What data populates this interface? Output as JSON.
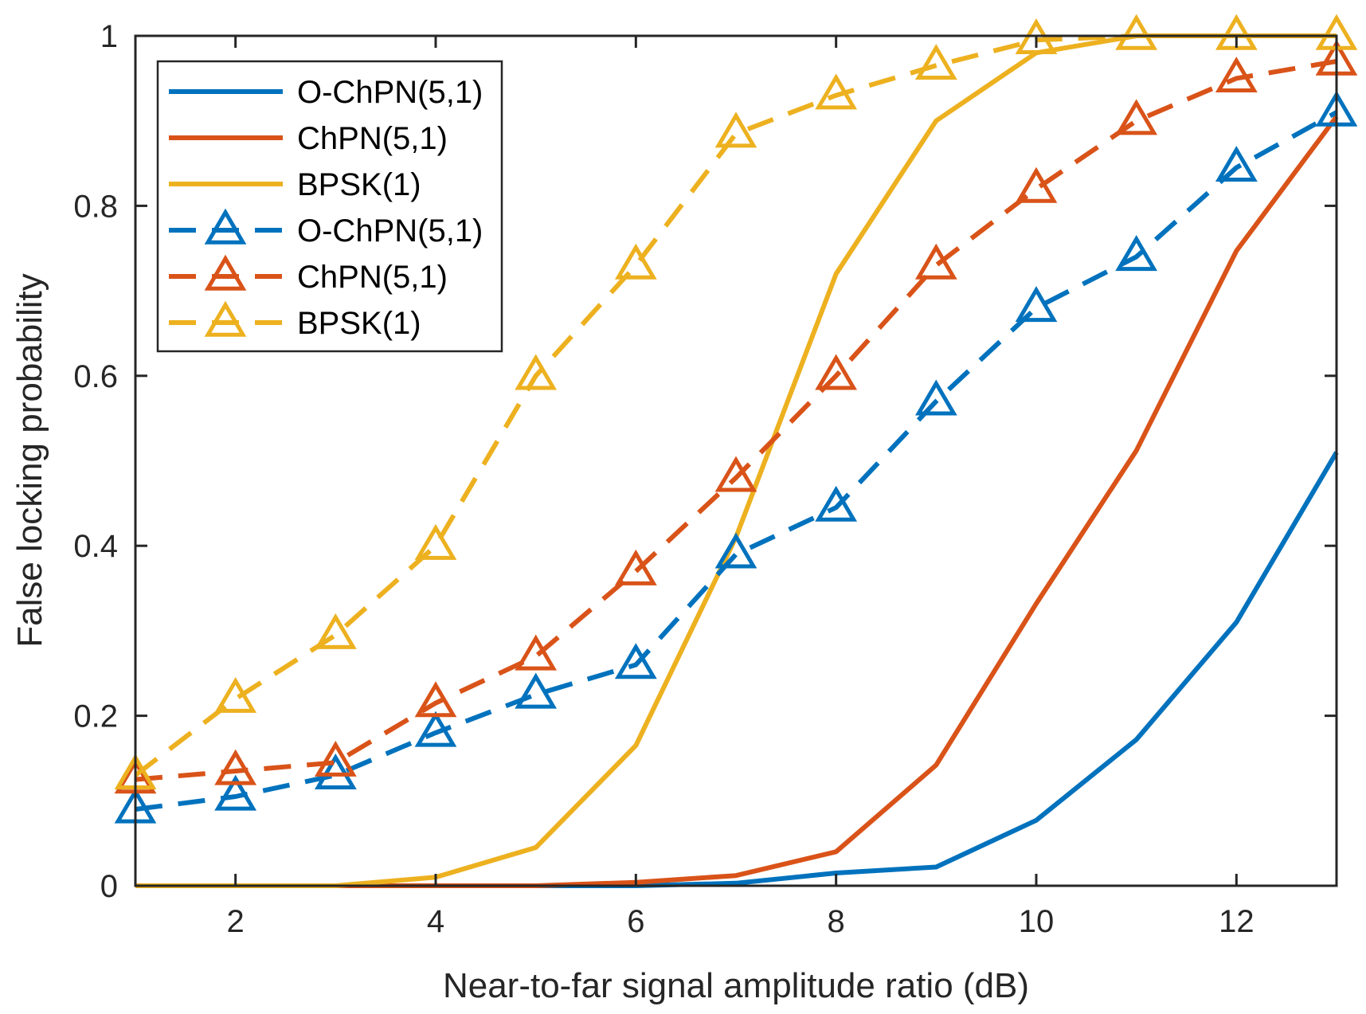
{
  "chart_data": {
    "type": "line",
    "title": "",
    "xlabel": "Near-to-far signal amplitude ratio (dB)",
    "ylabel": "False locking probability",
    "xlim": [
      1,
      13
    ],
    "ylim": [
      0,
      1
    ],
    "xticks": [
      2,
      4,
      6,
      8,
      10,
      12
    ],
    "xtick_labels": [
      "2",
      "4",
      "6",
      "8",
      "10",
      "12"
    ],
    "yticks": [
      0,
      0.2,
      0.4,
      0.6,
      0.8,
      1
    ],
    "ytick_labels": [
      "0",
      "0.2",
      "0.4",
      "0.6",
      "0.8",
      "1"
    ],
    "grid": false,
    "legend_position": "top-left",
    "x": [
      1,
      2,
      3,
      4,
      5,
      6,
      7,
      8,
      9,
      10,
      11,
      12,
      13
    ],
    "series": [
      {
        "name": "O-ChPN(5,1)",
        "color": "#0072BD",
        "style": "solid",
        "marker": "none",
        "values": [
          0,
          0,
          0,
          0,
          0,
          0,
          0.003,
          0.015,
          0.022,
          0.077,
          0.172,
          0.31,
          0.51
        ]
      },
      {
        "name": "ChPN(5,1)",
        "color": "#D95319",
        "style": "solid",
        "marker": "none",
        "values": [
          0,
          0,
          0,
          0,
          0,
          0.004,
          0.012,
          0.04,
          0.142,
          0.332,
          0.512,
          0.747,
          0.905
        ]
      },
      {
        "name": "BPSK(1)",
        "color": "#EDB120",
        "style": "solid",
        "marker": "none",
        "values": [
          0,
          0,
          0,
          0.01,
          0.045,
          0.165,
          0.41,
          0.72,
          0.9,
          0.98,
          1.0,
          1.0,
          1.0
        ]
      },
      {
        "name": "O-ChPN(5,1)",
        "color": "#0072BD",
        "style": "dashed",
        "marker": "triangle",
        "values": [
          0.09,
          0.105,
          0.13,
          0.18,
          0.225,
          0.26,
          0.39,
          0.445,
          0.57,
          0.68,
          0.74,
          0.845,
          0.91
        ]
      },
      {
        "name": "ChPN(5,1)",
        "color": "#D95319",
        "style": "dashed",
        "marker": "triangle",
        "values": [
          0.125,
          0.135,
          0.145,
          0.215,
          0.27,
          0.37,
          0.48,
          0.6,
          0.73,
          0.82,
          0.9,
          0.95,
          0.97
        ]
      },
      {
        "name": "BPSK(1)",
        "color": "#EDB120",
        "style": "dashed",
        "marker": "triangle",
        "values": [
          0.13,
          0.22,
          0.295,
          0.4,
          0.6,
          0.73,
          0.885,
          0.93,
          0.965,
          0.995,
          1.0,
          1.0,
          1.0
        ]
      }
    ]
  }
}
